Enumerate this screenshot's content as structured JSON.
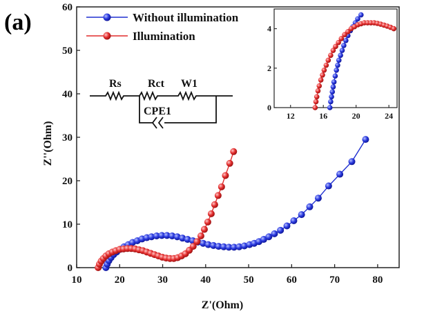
{
  "panel_label": "(a)",
  "chart_data": {
    "type": "scatter",
    "title": "",
    "xlabel": "Z'(Ohm)",
    "ylabel": "Z''(Ohm)",
    "xlim": [
      10,
      85
    ],
    "ylim": [
      0,
      60
    ],
    "xticks": [
      10,
      20,
      30,
      40,
      50,
      60,
      70,
      80
    ],
    "yticks": [
      0,
      10,
      20,
      30,
      40,
      50,
      60
    ],
    "legend_position": "top-left",
    "series": [
      {
        "name": "Without illumination",
        "color": "#1f2fd0",
        "x": [
          16.8,
          17.1,
          17.5,
          18.0,
          18.6,
          19.3,
          20.1,
          21.0,
          22.0,
          23.0,
          24.1,
          25.2,
          26.3,
          27.4,
          28.6,
          29.8,
          31.0,
          32.2,
          33.4,
          34.6,
          35.8,
          37.0,
          38.2,
          39.4,
          40.6,
          41.8,
          43.0,
          44.2,
          45.4,
          46.6,
          47.8,
          49.0,
          50.2,
          51.3,
          52.4,
          53.5,
          54.7,
          56.0,
          57.4,
          58.9,
          60.5,
          62.3,
          64.2,
          66.2,
          68.6,
          71.2,
          74.0,
          77.2
        ],
        "y": [
          0.0,
          0.8,
          1.6,
          2.3,
          3.0,
          3.6,
          4.2,
          4.8,
          5.3,
          5.8,
          6.2,
          6.6,
          6.9,
          7.1,
          7.3,
          7.4,
          7.4,
          7.3,
          7.1,
          6.8,
          6.5,
          6.2,
          5.9,
          5.6,
          5.3,
          5.1,
          4.9,
          4.8,
          4.7,
          4.7,
          4.8,
          5.0,
          5.3,
          5.6,
          6.0,
          6.5,
          7.1,
          7.8,
          8.6,
          9.6,
          10.8,
          12.2,
          14.0,
          16.0,
          18.8,
          21.5,
          24.4,
          29.5
        ]
      },
      {
        "name": "Illumination",
        "color": "#e02a2a",
        "x": [
          15.0,
          15.3,
          15.7,
          16.2,
          16.8,
          17.5,
          18.3,
          19.1,
          20.0,
          20.9,
          21.8,
          22.7,
          23.6,
          24.5,
          25.4,
          26.3,
          27.2,
          28.1,
          29.0,
          29.9,
          30.8,
          31.7,
          32.6,
          33.5,
          34.4,
          35.3,
          36.2,
          37.1,
          38.0,
          38.9,
          39.7,
          40.5,
          41.3,
          42.1,
          42.9,
          43.7,
          44.6,
          45.6,
          46.5
        ],
        "y": [
          0.0,
          0.8,
          1.5,
          2.1,
          2.7,
          3.2,
          3.6,
          3.9,
          4.2,
          4.3,
          4.4,
          4.4,
          4.3,
          4.1,
          3.9,
          3.6,
          3.3,
          3.0,
          2.7,
          2.4,
          2.2,
          2.1,
          2.1,
          2.3,
          2.7,
          3.2,
          4.0,
          4.9,
          6.0,
          7.3,
          8.8,
          10.5,
          12.4,
          14.5,
          16.6,
          18.6,
          21.2,
          24.0,
          26.7
        ]
      }
    ],
    "inset": {
      "xlim": [
        10,
        25
      ],
      "ylim": [
        0,
        5
      ],
      "xticks": [
        12,
        16,
        20,
        24
      ],
      "yticks": [
        0,
        2,
        4
      ],
      "series": [
        {
          "name": "Without illumination",
          "x": [
            16.8,
            16.9,
            17.0,
            17.1,
            17.2,
            17.3,
            17.45,
            17.6,
            17.75,
            17.9,
            18.1,
            18.3,
            18.5,
            18.75,
            19.0,
            19.3,
            19.6,
            19.9,
            20.2,
            20.6
          ],
          "y": [
            0.0,
            0.3,
            0.55,
            0.8,
            1.05,
            1.3,
            1.6,
            1.9,
            2.15,
            2.4,
            2.65,
            2.9,
            3.15,
            3.4,
            3.65,
            3.9,
            4.1,
            4.3,
            4.5,
            4.7
          ]
        },
        {
          "name": "Illumination",
          "x": [
            15.0,
            15.1,
            15.2,
            15.35,
            15.5,
            15.7,
            15.9,
            16.1,
            16.35,
            16.6,
            16.9,
            17.2,
            17.5,
            17.85,
            18.2,
            18.6,
            19.0,
            19.4,
            19.8,
            20.2,
            20.6,
            21.0,
            21.4,
            21.8,
            22.2,
            22.6,
            23.0,
            23.4,
            23.8,
            24.2,
            24.6
          ],
          "y": [
            0.0,
            0.3,
            0.55,
            0.85,
            1.1,
            1.4,
            1.65,
            1.9,
            2.15,
            2.4,
            2.65,
            2.9,
            3.1,
            3.3,
            3.5,
            3.7,
            3.85,
            4.0,
            4.1,
            4.2,
            4.25,
            4.3,
            4.3,
            4.3,
            4.3,
            4.27,
            4.23,
            4.18,
            4.13,
            4.07,
            4.0
          ]
        }
      ]
    }
  },
  "circuit": {
    "labels": [
      "Rs",
      "Rct",
      "W1",
      "CPE1"
    ]
  }
}
